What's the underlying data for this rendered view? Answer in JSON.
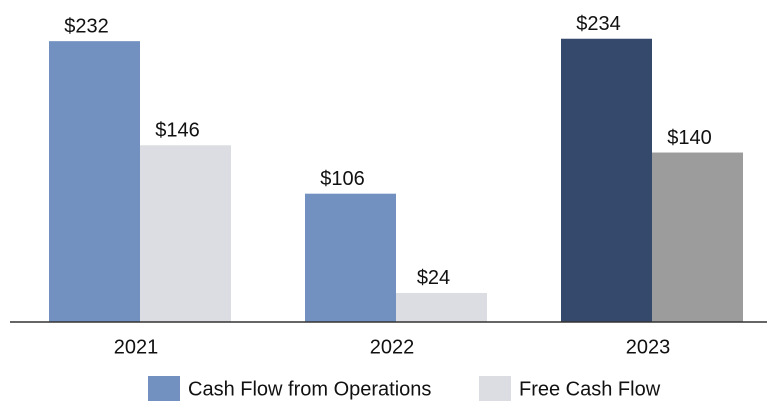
{
  "chart_data": {
    "type": "bar",
    "categories": [
      "2021",
      "2022",
      "2023"
    ],
    "series": [
      {
        "name": "Cash Flow from Operations",
        "color": "#7391c0",
        "colors": [
          "#7391c0",
          "#7391c0",
          "#34496b"
        ],
        "values": [
          232,
          106,
          234
        ],
        "value_labels": [
          "$232",
          "$106",
          "$234"
        ]
      },
      {
        "name": "Free Cash Flow",
        "color": "#dcdde2",
        "colors": [
          "#dcdde2",
          "#dcdde2",
          "#9c9c9c"
        ],
        "values": [
          146,
          24,
          140
        ],
        "value_labels": [
          "$146",
          "$24",
          "$140"
        ]
      }
    ],
    "ylim": [
      0,
      266
    ]
  }
}
